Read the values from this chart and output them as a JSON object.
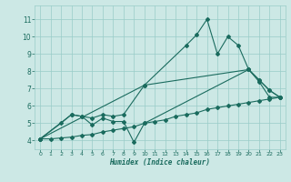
{
  "xlabel": "Humidex (Indice chaleur)",
  "background_color": "#cce8e5",
  "grid_color": "#99ccc8",
  "line_color": "#1a6b5e",
  "xlim": [
    -0.5,
    23.5
  ],
  "ylim": [
    3.5,
    11.8
  ],
  "xticks": [
    0,
    1,
    2,
    3,
    4,
    5,
    6,
    7,
    8,
    9,
    10,
    11,
    12,
    13,
    14,
    15,
    16,
    17,
    18,
    19,
    20,
    21,
    22,
    23
  ],
  "yticks": [
    4,
    5,
    6,
    7,
    8,
    9,
    10,
    11
  ],
  "line_volatile": {
    "x": [
      0,
      10,
      14,
      15,
      16,
      17,
      18,
      19,
      20,
      21,
      22,
      23
    ],
    "y": [
      4.1,
      7.2,
      9.5,
      10.1,
      11.0,
      9.0,
      10.0,
      9.5,
      8.1,
      7.4,
      6.5,
      6.5
    ]
  },
  "line_medium_high": {
    "x": [
      0,
      3,
      4,
      5,
      6,
      7,
      8,
      10,
      20,
      21,
      22,
      23
    ],
    "y": [
      4.1,
      5.5,
      5.4,
      5.3,
      5.5,
      5.4,
      5.5,
      7.2,
      8.1,
      7.5,
      6.9,
      6.5
    ]
  },
  "line_medium_low": {
    "x": [
      0,
      2,
      3,
      4,
      5,
      6,
      7,
      8,
      9,
      10,
      20,
      21,
      22,
      23
    ],
    "y": [
      4.1,
      5.0,
      5.5,
      5.4,
      4.9,
      5.3,
      5.1,
      5.1,
      3.9,
      5.0,
      8.1,
      7.5,
      6.9,
      6.5
    ]
  },
  "line_bottom": {
    "x": [
      0,
      1,
      2,
      3,
      4,
      5,
      6,
      7,
      8,
      9,
      10,
      11,
      12,
      13,
      14,
      15,
      16,
      17,
      18,
      19,
      20,
      21,
      22,
      23
    ],
    "y": [
      4.1,
      4.1,
      4.15,
      4.2,
      4.3,
      4.35,
      4.5,
      4.6,
      4.7,
      4.8,
      5.0,
      5.1,
      5.2,
      5.4,
      5.5,
      5.6,
      5.8,
      5.9,
      6.0,
      6.1,
      6.2,
      6.3,
      6.4,
      6.5
    ]
  }
}
